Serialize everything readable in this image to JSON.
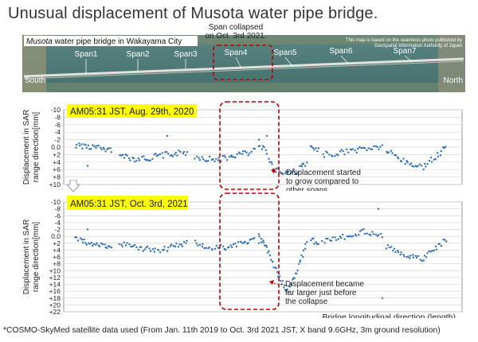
{
  "title": "Unusual displacement of Musota water pipe bridge.",
  "aerial": {
    "caption_italic": "Musota",
    "caption_rest": " water pipe  bridge in Wakayama City",
    "credit_line1": "This map is based on the seamless photo published by",
    "credit_line2": "Geospatial Information Authority of Japan",
    "span_labels": [
      "Span1",
      "Span2",
      "Span3",
      "Span4",
      "Span5",
      "Span6",
      "Span7"
    ],
    "south": "South",
    "north": "North",
    "collapse_line1": "Span collapsed",
    "collapse_line2": "on Oct. 3rd 2021."
  },
  "colors": {
    "points": "#2e6fb5",
    "highlight_box": "#c00000",
    "label_bg": "#ffff00",
    "water": "#4f7a78",
    "bridge": "#d9d9d4"
  },
  "chart_data": [
    {
      "type": "scatter",
      "title": "AM05:31 JST, Aug. 29th, 2020",
      "ylabel": "Displacement in SAR range direction[mm]",
      "xlabel": "",
      "y_ticks": [
        "-10",
        "-8",
        "-6",
        "-4",
        "-2",
        "0.0",
        "+2",
        "+4",
        "+6",
        "+8",
        "+10"
      ],
      "ylim": [
        10,
        -10
      ],
      "xlim": [
        0,
        100
      ],
      "annotation": [
        "Displacement started",
        "to grow compared to",
        "other spans."
      ],
      "series": [
        {
          "segments": [
            {
              "x0": 3,
              "x1": 12,
              "n": 26,
              "pts": [
                [
                  0,
                  -0.5
                ],
                [
                  0.5,
                  0
                ],
                [
                  1,
                  1
                ]
              ]
            },
            {
              "x0": 14,
              "x1": 31,
              "n": 44,
              "pts": [
                [
                  0,
                  1.5
                ],
                [
                  0.2,
                  3.2
                ],
                [
                  0.4,
                  3
                ],
                [
                  0.7,
                  2
                ],
                [
                  1,
                  1.5
                ]
              ]
            },
            {
              "x0": 33,
              "x1": 48,
              "n": 38,
              "pts": [
                [
                  0,
                  2.5
                ],
                [
                  0.3,
                  3.5
                ],
                [
                  0.6,
                  2.5
                ],
                [
                  1,
                  1
                ]
              ]
            },
            {
              "x0": 49,
              "x1": 61,
              "n": 36,
              "pts": [
                [
                  0,
                  -1
                ],
                [
                  0.15,
                  1
                ],
                [
                  0.3,
                  5.5
                ],
                [
                  0.5,
                  7
                ],
                [
                  0.8,
                  6.5
                ],
                [
                  1,
                  4
                ]
              ]
            },
            {
              "x0": 62,
              "x1": 64,
              "n": 7,
              "pts": [
                [
                  0,
                  0.5
                ],
                [
                  1,
                  1
                ]
              ]
            },
            {
              "x0": 65,
              "x1": 80,
              "n": 36,
              "pts": [
                [
                  0,
                  2
                ],
                [
                  0.3,
                  1.5
                ],
                [
                  0.7,
                  0.5
                ],
                [
                  1,
                  0
                ]
              ]
            },
            {
              "x0": 81,
              "x1": 96,
              "n": 40,
              "pts": [
                [
                  0,
                  1
                ],
                [
                  0.3,
                  4
                ],
                [
                  0.6,
                  5.5
                ],
                [
                  1,
                  0
                ]
              ]
            }
          ]
        }
      ],
      "outliers": [
        [
          6,
          5
        ],
        [
          26,
          -3
        ],
        [
          49,
          -2
        ],
        [
          51,
          -3
        ]
      ]
    },
    {
      "type": "scatter",
      "title": "AM05:31 JST, Oct. 3rd, 2021",
      "ylabel": "Displacement in SAR range direction[mm]",
      "xlabel": "Bridge longitudinal direction (length)",
      "y_ticks": [
        "-10",
        "-8",
        "-6",
        "-4",
        "-2",
        "0.0",
        "+2",
        "+4",
        "+6",
        "+8",
        "+10",
        "+12",
        "+14",
        "+16",
        "+18",
        "+20",
        "+22"
      ],
      "ylim": [
        22,
        -10
      ],
      "xlim": [
        0,
        100
      ],
      "annotation": [
        "Displacement became",
        "far larger just before",
        "the collapse"
      ],
      "series": [
        {
          "segments": [
            {
              "x0": 3,
              "x1": 12,
              "n": 26,
              "pts": [
                [
                  0,
                  1
                ],
                [
                  0.5,
                  2
                ],
                [
                  1,
                  3
                ]
              ]
            },
            {
              "x0": 14,
              "x1": 31,
              "n": 44,
              "pts": [
                [
                  0,
                  2
                ],
                [
                  0.3,
                  3.5
                ],
                [
                  0.6,
                  4
                ],
                [
                  1,
                  2
                ]
              ]
            },
            {
              "x0": 33,
              "x1": 48,
              "n": 38,
              "pts": [
                [
                  0,
                  2
                ],
                [
                  0.3,
                  3.5
                ],
                [
                  0.6,
                  3
                ],
                [
                  1,
                  1
                ]
              ]
            },
            {
              "x0": 49,
              "x1": 61,
              "n": 48,
              "pts": [
                [
                  0,
                  0
                ],
                [
                  0.15,
                  3
                ],
                [
                  0.3,
                  8
                ],
                [
                  0.45,
                  13
                ],
                [
                  0.6,
                  16
                ],
                [
                  0.75,
                  12
                ],
                [
                  0.9,
                  6
                ],
                [
                  1,
                  2
                ]
              ]
            },
            {
              "x0": 62,
              "x1": 64,
              "n": 7,
              "pts": [
                [
                  0,
                  1
                ],
                [
                  1,
                  2
                ]
              ]
            },
            {
              "x0": 65,
              "x1": 80,
              "n": 36,
              "pts": [
                [
                  0,
                  1.5
                ],
                [
                  0.4,
                  0
                ],
                [
                  0.7,
                  -1.5
                ],
                [
                  1,
                  0
                ]
              ]
            },
            {
              "x0": 81,
              "x1": 96,
              "n": 40,
              "pts": [
                [
                  0,
                  3
                ],
                [
                  0.3,
                  5.5
                ],
                [
                  0.6,
                  6.5
                ],
                [
                  1,
                  1
                ]
              ]
            }
          ]
        }
      ],
      "outliers": [
        [
          6,
          -2
        ],
        [
          49,
          2
        ],
        [
          79,
          -8
        ],
        [
          80,
          18
        ]
      ]
    }
  ],
  "footnote": "*COSMO-SkyMed satellite data used (From Jan. 11th 2019 to Oct. 3rd 2021 JST, X band 9.6GHz, 3m ground resolution)"
}
